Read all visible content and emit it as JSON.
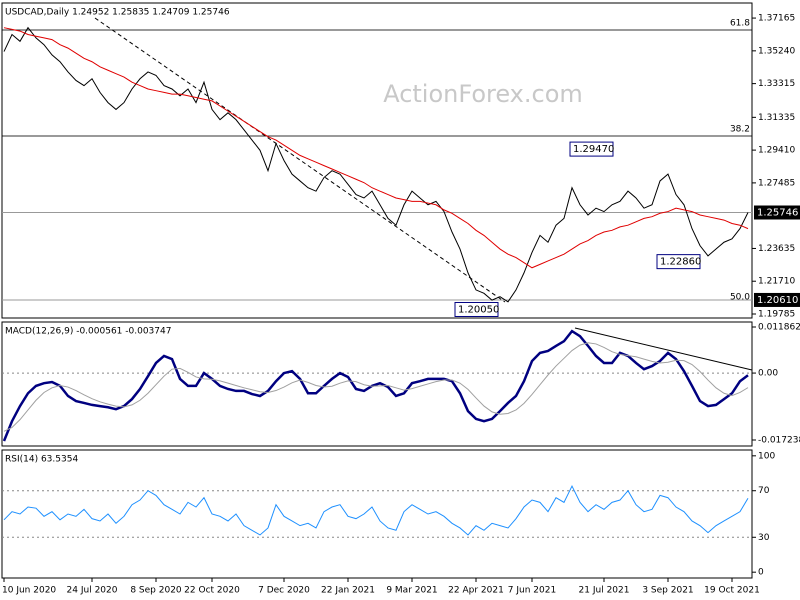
{
  "chart_data": [
    {
      "type": "line",
      "title": "USDCAD,Daily  1.24952 1.25835 1.24709 1.25746",
      "watermark": "ActionForex.com",
      "fib_labels": [
        "61.8",
        "38.2",
        "50.0"
      ],
      "categories": [
        "10 Jun 2020",
        null,
        null,
        null,
        null,
        null,
        null,
        null,
        null,
        null,
        null,
        "24 Jul 2020",
        null,
        null,
        null,
        null,
        null,
        null,
        null,
        "8 Sep 2020",
        null,
        null,
        null,
        null,
        null,
        null,
        "22 Oct 2020",
        null,
        null,
        null,
        null,
        null,
        null,
        null,
        null,
        "7 Dec 2020",
        null,
        null,
        null,
        null,
        null,
        null,
        null,
        "22 Jan 2021",
        null,
        null,
        null,
        null,
        null,
        null,
        null,
        "9 Mar 2021",
        null,
        null,
        null,
        null,
        null,
        null,
        null,
        "22 Apr 2021",
        null,
        null,
        null,
        null,
        null,
        null,
        "7 Jun 2021",
        null,
        null,
        null,
        null,
        null,
        null,
        null,
        null,
        "21 Jul 2021",
        null,
        null,
        null,
        null,
        null,
        null,
        null,
        "3 Sep 2021",
        null,
        null,
        null,
        null,
        null,
        null,
        null,
        "19 Oct 2021",
        null,
        null
      ],
      "series": [
        {
          "color": "#000000",
          "values": [
            1.352,
            1.362,
            1.358,
            1.366,
            1.36,
            1.356,
            1.35,
            1.346,
            1.34,
            1.335,
            1.332,
            1.336,
            1.328,
            1.322,
            1.318,
            1.322,
            1.33,
            1.336,
            1.34,
            1.338,
            1.332,
            1.33,
            1.326,
            1.33,
            1.322,
            1.334,
            1.318,
            1.312,
            1.316,
            1.312,
            1.306,
            1.3,
            1.294,
            1.282,
            1.298,
            1.288,
            1.28,
            1.276,
            1.272,
            1.27,
            1.278,
            1.282,
            1.28,
            1.274,
            1.268,
            1.266,
            1.27,
            1.262,
            1.254,
            1.25,
            1.262,
            1.27,
            1.266,
            1.262,
            1.264,
            1.258,
            1.246,
            1.236,
            1.222,
            1.212,
            1.21,
            1.206,
            1.208,
            1.205,
            1.212,
            1.222,
            1.234,
            1.244,
            1.24,
            1.25,
            1.254,
            1.272,
            1.262,
            1.256,
            1.26,
            1.258,
            1.262,
            1.264,
            1.27,
            1.266,
            1.26,
            1.262,
            1.276,
            1.28,
            1.268,
            1.262,
            1.248,
            1.238,
            1.232,
            1.236,
            1.24,
            1.242,
            1.248,
            1.25746
          ]
        },
        {
          "color": "#e00000",
          "values": [
            1.366,
            1.365,
            1.364,
            1.362,
            1.361,
            1.36,
            1.359,
            1.356,
            1.354,
            1.351,
            1.348,
            1.346,
            1.343,
            1.341,
            1.339,
            1.337,
            1.334,
            1.332,
            1.33,
            1.329,
            1.328,
            1.327,
            1.327,
            1.326,
            1.325,
            1.324,
            1.323,
            1.32,
            1.317,
            1.314,
            1.311,
            1.308,
            1.305,
            1.302,
            1.3,
            1.297,
            1.294,
            1.291,
            1.289,
            1.287,
            1.285,
            1.283,
            1.281,
            1.279,
            1.277,
            1.275,
            1.272,
            1.27,
            1.268,
            1.266,
            1.265,
            1.264,
            1.264,
            1.263,
            1.262,
            1.259,
            1.257,
            1.254,
            1.251,
            1.247,
            1.244,
            1.24,
            1.236,
            1.233,
            1.231,
            1.228,
            1.225,
            1.227,
            1.229,
            1.231,
            1.233,
            1.236,
            1.239,
            1.241,
            1.244,
            1.246,
            1.247,
            1.249,
            1.25,
            1.252,
            1.254,
            1.255,
            1.257,
            1.258,
            1.26,
            1.259,
            1.258,
            1.256,
            1.255,
            1.254,
            1.253,
            1.251,
            1.25,
            1.248
          ]
        }
      ],
      "ylim": [
        1.1955,
        1.3805
      ],
      "yticks": [
        1.37165,
        {
          "value": 1.3524,
          "label": "1.35240"
        },
        1.33315,
        1.31335,
        {
          "value": 1.2941,
          "label": "1.29410"
        },
        1.27485,
        1.23635,
        {
          "value": 1.2171,
          "label": "1.21710"
        },
        1.19785
      ],
      "price_lines": [
        1.25746,
        {
          "value": 1.2061,
          "label": "1.20610"
        }
      ],
      "annotations": [
        {
          "value": 1.2947,
          "label": "1.29470"
        },
        {
          "value": 1.2286,
          "label": "1.22860"
        },
        {
          "value": 1.2005,
          "label": "1.20050"
        }
      ]
    },
    {
      "type": "line",
      "title": "MACD(12,26,9) -0.000561 -0.003747",
      "series": [
        {
          "color": "#000080",
          "values": [
            -0.0175,
            -0.0124,
            -0.0085,
            -0.0052,
            -0.0033,
            -0.0026,
            -0.0023,
            -0.0033,
            -0.0059,
            -0.0072,
            -0.0077,
            -0.0082,
            -0.0085,
            -0.0088,
            -0.0093,
            -0.0085,
            -0.0067,
            -0.0041,
            -0.0008,
            0.0026,
            0.0044,
            0.0036,
            -0.0015,
            -0.0033,
            -0.0033,
            0.0,
            -0.0015,
            -0.0033,
            -0.0041,
            -0.0046,
            -0.0046,
            -0.0054,
            -0.0059,
            -0.0046,
            -0.0021,
            0.0,
            0.0005,
            -0.0015,
            -0.0052,
            -0.0052,
            -0.0033,
            -0.0015,
            0.0,
            -0.001,
            -0.0041,
            -0.0046,
            -0.0033,
            -0.0026,
            -0.0036,
            -0.0059,
            -0.0052,
            -0.0026,
            -0.0021,
            -0.0015,
            -0.0015,
            -0.0015,
            -0.0021,
            -0.0052,
            -0.0098,
            -0.0118,
            -0.0124,
            -0.0118,
            -0.0098,
            -0.0077,
            -0.0059,
            -0.0021,
            0.0031,
            0.0052,
            0.0057,
            0.007,
            0.0082,
            0.0108,
            0.0095,
            0.007,
            0.0044,
            0.0026,
            0.0026,
            0.0052,
            0.0044,
            0.0026,
            0.001,
            0.0018,
            0.0031,
            0.0052,
            0.0036,
            0.0005,
            -0.0033,
            -0.0072,
            -0.0085,
            -0.0082,
            -0.0067,
            -0.0052,
            -0.0021,
            -0.000561
          ]
        },
        {
          "color": "#a0a0a0",
          "values": [
            -0.015,
            -0.014,
            -0.012,
            -0.0095,
            -0.007,
            -0.005,
            -0.0038,
            -0.0032,
            -0.0036,
            -0.0045,
            -0.0056,
            -0.0066,
            -0.0074,
            -0.008,
            -0.0085,
            -0.0087,
            -0.0082,
            -0.007,
            -0.0052,
            -0.003,
            -0.0008,
            0.001,
            0.0012,
            0.0002,
            -0.001,
            -0.0015,
            -0.0016,
            -0.002,
            -0.0026,
            -0.0032,
            -0.0038,
            -0.0043,
            -0.0048,
            -0.005,
            -0.0045,
            -0.0036,
            -0.0025,
            -0.0018,
            -0.0024,
            -0.0032,
            -0.0036,
            -0.0034,
            -0.0026,
            -0.002,
            -0.0022,
            -0.003,
            -0.0034,
            -0.0033,
            -0.0032,
            -0.0038,
            -0.0044,
            -0.004,
            -0.0034,
            -0.0028,
            -0.0022,
            -0.0018,
            -0.0018,
            -0.0026,
            -0.0042,
            -0.0064,
            -0.0085,
            -0.01,
            -0.0106,
            -0.0104,
            -0.0095,
            -0.0078,
            -0.0055,
            -0.003,
            -0.0005,
            0.0018,
            0.0038,
            0.0058,
            0.0072,
            0.0078,
            0.0075,
            0.0066,
            0.0055,
            0.0048,
            0.0045,
            0.0042,
            0.0036,
            0.003,
            0.0026,
            0.0028,
            0.0033,
            0.0032,
            0.0022,
            0.0004,
            -0.0018,
            -0.0038,
            -0.0052,
            -0.0058,
            -0.005,
            -0.003747
          ]
        }
      ],
      "ylim": [
        -0.01878,
        0.01315
      ],
      "yticks": [
        0.011862,
        {
          "value": 0,
          "label": "0.00"
        },
        -0.017238
      ],
      "levels": [
        0
      ]
    },
    {
      "type": "line",
      "title": "RSI(14) 63.5354",
      "series": [
        {
          "color": "#1e90ff",
          "values": [
            45,
            52,
            50,
            56,
            55,
            48,
            52,
            45,
            50,
            48,
            54,
            46,
            44,
            50,
            42,
            48,
            58,
            62,
            70,
            66,
            58,
            54,
            50,
            60,
            56,
            64,
            50,
            48,
            44,
            50,
            40,
            36,
            32,
            38,
            58,
            48,
            44,
            40,
            42,
            38,
            52,
            56,
            58,
            48,
            46,
            50,
            56,
            44,
            38,
            36,
            52,
            58,
            54,
            50,
            52,
            48,
            42,
            38,
            32,
            40,
            36,
            42,
            40,
            38,
            46,
            56,
            62,
            60,
            52,
            64,
            60,
            74,
            60,
            52,
            58,
            54,
            60,
            62,
            70,
            58,
            52,
            54,
            66,
            64,
            56,
            52,
            44,
            40,
            34,
            40,
            44,
            48,
            52,
            63.5354
          ]
        }
      ],
      "ylim": [
        -5,
        105
      ],
      "yticks": [
        100,
        70,
        30,
        0
      ],
      "levels": [
        70,
        30
      ]
    }
  ]
}
